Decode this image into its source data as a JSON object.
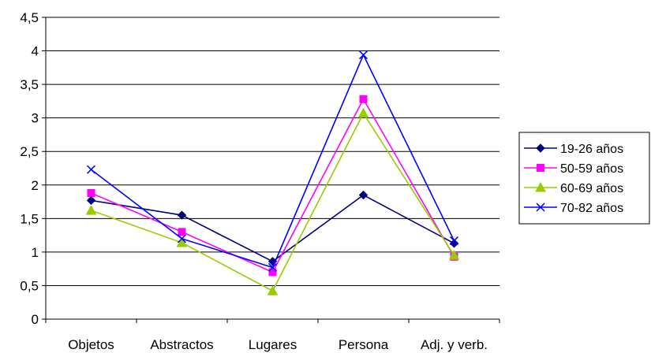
{
  "chart_data": {
    "type": "line",
    "categories": [
      "Objetos",
      "Abstractos",
      "Lugares",
      "Persona",
      "Adj. y verb."
    ],
    "y_ticks": [
      "0",
      "0,5",
      "1",
      "1,5",
      "2",
      "2,5",
      "3",
      "3,5",
      "4",
      "4,5"
    ],
    "ylim": [
      0,
      4.5
    ],
    "grid": true,
    "legend_position": "right",
    "series": [
      {
        "name": "19-26 años",
        "values": [
          1.77,
          1.55,
          0.86,
          1.85,
          1.13
        ],
        "color": "#000080",
        "marker": "diamond"
      },
      {
        "name": "50-59 años",
        "values": [
          1.88,
          1.3,
          0.7,
          3.28,
          0.93
        ],
        "color": "#FF00FF",
        "marker": "square"
      },
      {
        "name": "60-69 años",
        "values": [
          1.62,
          1.14,
          0.42,
          3.07,
          0.95
        ],
        "color": "#99CC00",
        "marker": "triangle"
      },
      {
        "name": "70-82 años",
        "values": [
          2.23,
          1.2,
          0.77,
          3.94,
          1.17
        ],
        "color": "#0000FF",
        "marker": "x"
      }
    ]
  }
}
